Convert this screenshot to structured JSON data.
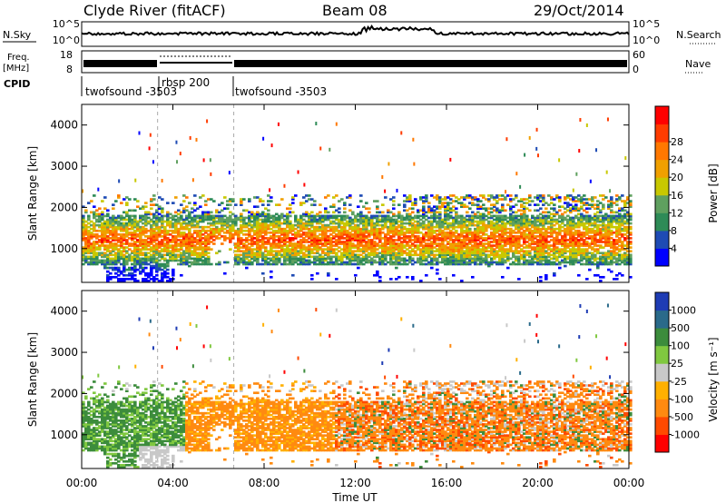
{
  "header": {
    "station": "Clyde River (fitACF)",
    "beam": "Beam 08",
    "date": "29/Oct/2014"
  },
  "left_labels": {
    "nsky": "N.Sky",
    "freq": "Freq.",
    "freq_unit": "[MHz]",
    "cpid": "CPID"
  },
  "right_labels": {
    "nsearch": "N.Search",
    "nave": "Nave"
  },
  "noise_axis": {
    "top": "10^5",
    "bottom": "10^0"
  },
  "freq_axis": {
    "top": "18",
    "bottom": "8"
  },
  "nave_axis": {
    "top": "60",
    "bottom": "0"
  },
  "cpid_segments": [
    {
      "label": "twofsound  -3503",
      "start": "00:00",
      "end": "03:20"
    },
    {
      "label": "rbsp  200",
      "start": "03:20",
      "end": "06:40"
    },
    {
      "label": "twofsound  -3503",
      "start": "06:40",
      "end": "24:00"
    }
  ],
  "colors": {
    "power": [
      "#0000ff",
      "#1e4bb4",
      "#2e8b57",
      "#5fa05f",
      "#c8c800",
      "#f0a000",
      "#ff7800",
      "#ff3c00",
      "#ff0000"
    ],
    "velocity": [
      "#ff0000",
      "#ff4a00",
      "#ff8a10",
      "#ffb000",
      "#c8c8c8",
      "#80c840",
      "#3c8c3c",
      "#2a6a8a",
      "#1e3cb4"
    ]
  },
  "chart_data": [
    {
      "type": "heatmap",
      "panel": "power",
      "ylabel": "Slant Range [km]",
      "yticks": [
        1000,
        2000,
        3000,
        4000
      ],
      "ylim": [
        180,
        4500
      ],
      "xlim_hours": [
        0,
        24
      ],
      "colorbar_label": "Power [dB]",
      "colorbar_ticks": [
        "4",
        "8",
        "12",
        "16",
        "20",
        "24",
        "28"
      ],
      "colorbar_range": [
        0,
        30
      ],
      "main_echo_band_km": [
        600,
        1800
      ],
      "upper_sporadic_km": [
        1900,
        2300
      ]
    },
    {
      "type": "heatmap",
      "panel": "velocity",
      "ylabel": "Slant Range [km]",
      "yticks": [
        1000,
        2000,
        3000,
        4000
      ],
      "ylim": [
        180,
        4500
      ],
      "xlim_hours": [
        0,
        24
      ],
      "colorbar_label": "Velocity  [m s⁻¹]",
      "colorbar_ticks": [
        "1000",
        "500",
        "100",
        "25",
        "-25",
        "-100",
        "-500",
        "-1000"
      ],
      "main_echo_band_km": [
        600,
        1800
      ]
    }
  ],
  "x_axis": {
    "ticks": [
      "00:00",
      "04:00",
      "08:00",
      "12:00",
      "16:00",
      "20:00",
      "00:00"
    ],
    "label": "Time UT"
  }
}
